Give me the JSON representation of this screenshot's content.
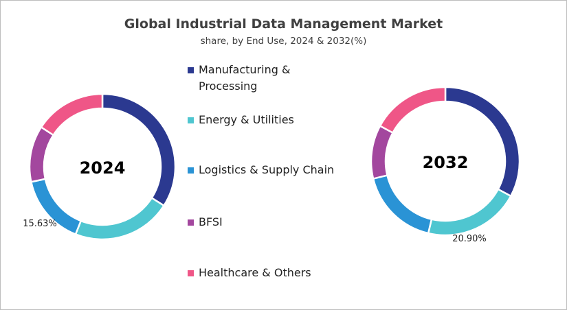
{
  "chart_data": [
    {
      "type": "pie",
      "variant": "donut",
      "title": "Global Industrial Data Management Market",
      "subtitle": "share, by End Use, 2024 & 2032(%)",
      "center_label": "2024",
      "categories": [
        "Manufacturing & Processing",
        "Energy & Utilities",
        "Logistics & Supply Chain",
        "BFSI",
        "Healthcare & Others"
      ],
      "values": [
        34.0,
        22.0,
        15.63,
        12.5,
        15.87
      ],
      "data_labels": [
        {
          "category": "Logistics & Supply Chain",
          "text": "15.63%"
        }
      ],
      "legend": "center"
    },
    {
      "type": "pie",
      "variant": "donut",
      "center_label": "2032",
      "categories": [
        "Manufacturing & Processing",
        "Energy & Utilities",
        "Logistics & Supply Chain",
        "BFSI",
        "Healthcare & Others"
      ],
      "values": [
        32.8,
        20.9,
        17.5,
        11.7,
        17.1
      ],
      "data_labels": [
        {
          "category": "Energy & Utilities",
          "text": "20.90%"
        }
      ]
    }
  ],
  "colors": [
    "#2B3990",
    "#4FC6D0",
    "#2A93D5",
    "#A3479E",
    "#EF5687"
  ],
  "legend": {
    "items": [
      {
        "label": "Manufacturing & Processing"
      },
      {
        "label": "Energy & Utilities"
      },
      {
        "label": "Logistics & Supply Chain"
      },
      {
        "label": "BFSI"
      },
      {
        "label": "Healthcare & Others"
      }
    ]
  }
}
